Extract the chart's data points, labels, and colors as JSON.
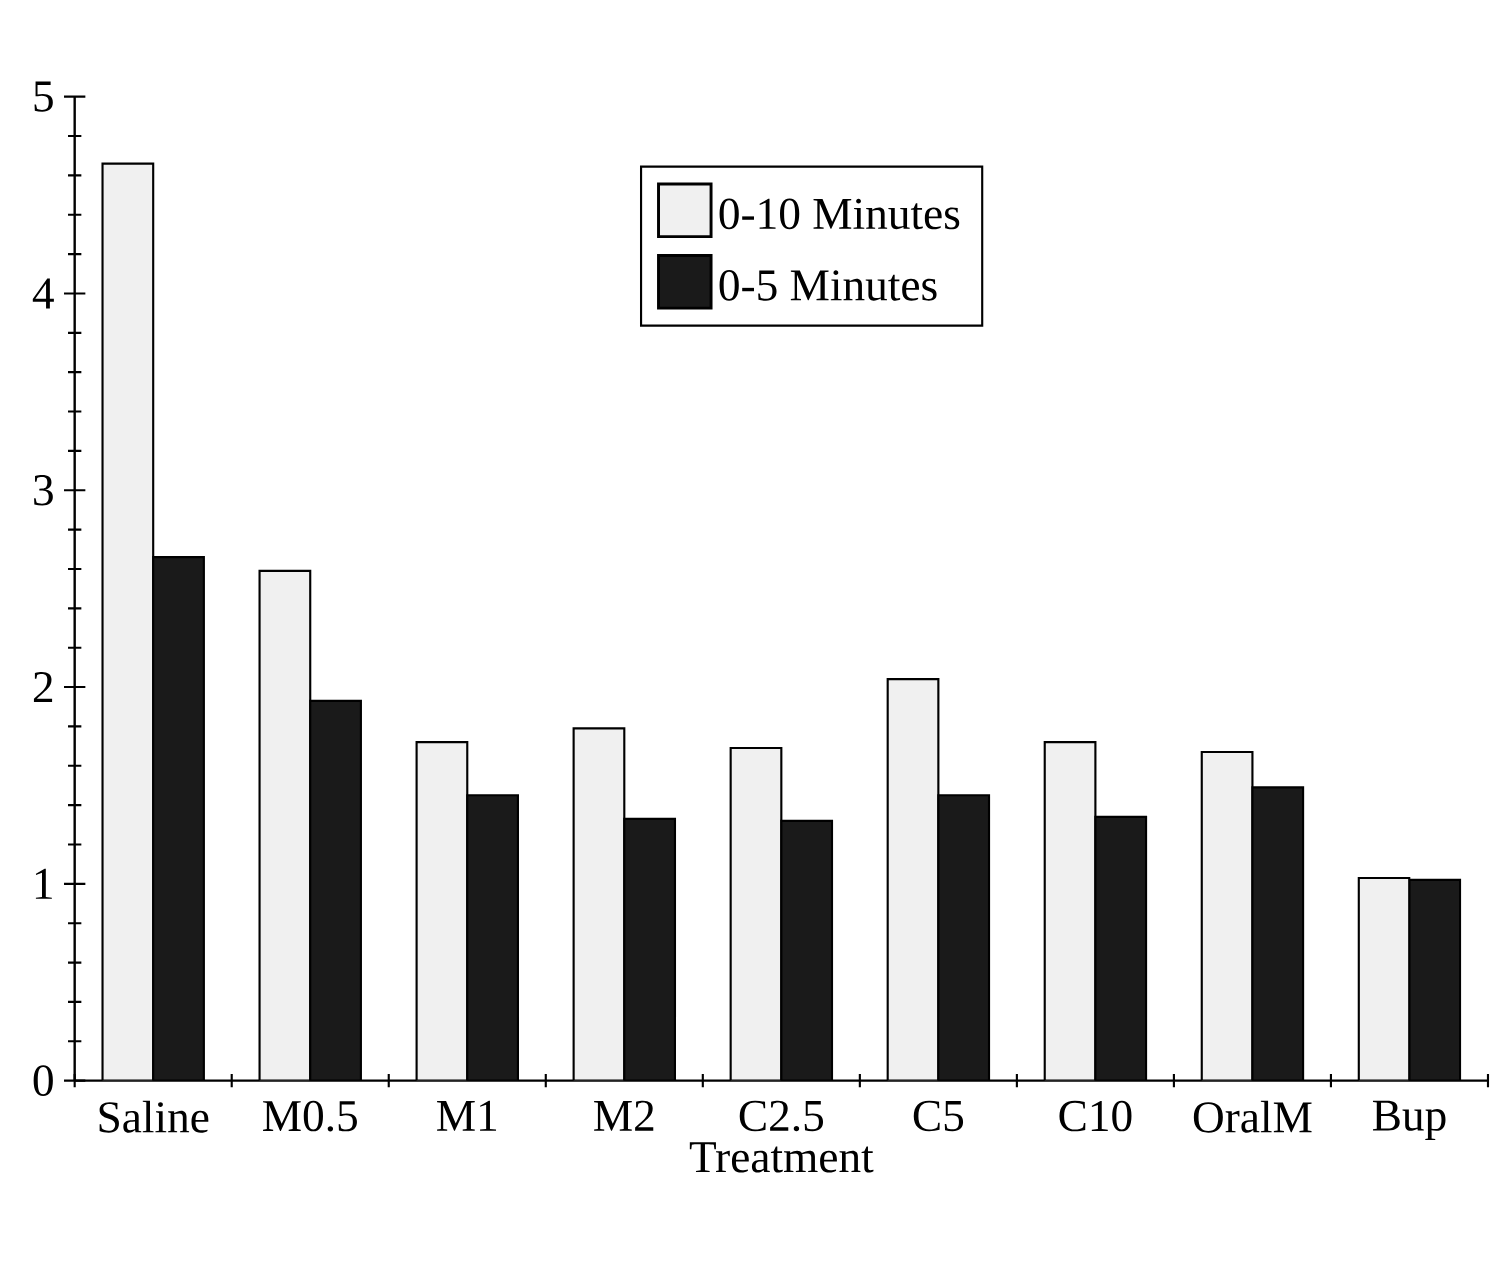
{
  "chart_data": {
    "type": "bar",
    "xlabel": "Treatment",
    "categories": [
      "Saline",
      "M0.5",
      "M1",
      "M2",
      "C2.5",
      "C5",
      "C10",
      "OralM",
      "Bup"
    ],
    "series": [
      {
        "name": "0-10 Minutes",
        "color": "#f0f0f0",
        "values": [
          4.66,
          2.59,
          1.72,
          1.79,
          1.69,
          2.04,
          1.72,
          1.67,
          1.03
        ]
      },
      {
        "name": "0-5 Minutes",
        "color": "#1a1a1a",
        "values": [
          2.66,
          1.93,
          1.45,
          1.33,
          1.32,
          1.45,
          1.34,
          1.49,
          1.02
        ]
      }
    ],
    "ylim": [
      0,
      5
    ],
    "yticks": [
      0,
      1,
      2,
      3,
      4,
      5
    ],
    "grid": false,
    "legend": "top right"
  }
}
